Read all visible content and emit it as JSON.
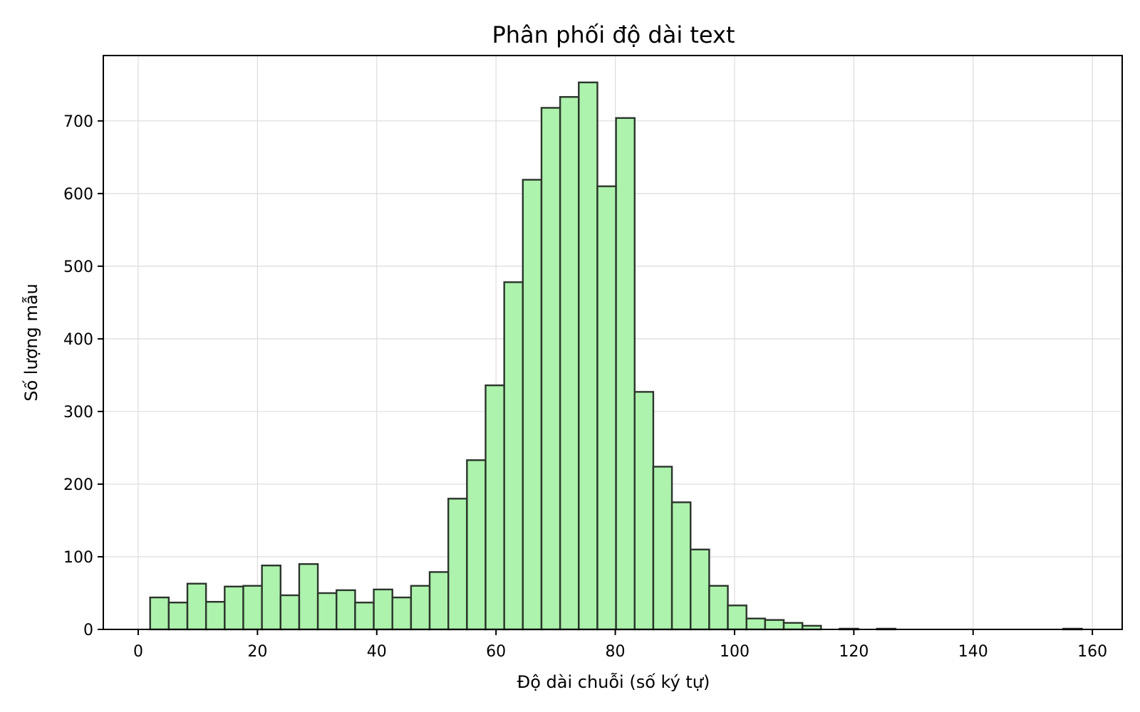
{
  "chart_data": {
    "type": "bar",
    "title": "Phân phối độ dài text",
    "xlabel": "Độ dài chuỗi (số ký tự)",
    "ylabel": "Số lượng mẫu",
    "xlim": [
      -5.85,
      165.0
    ],
    "ylim": [
      0,
      790
    ],
    "xticks": [
      0,
      20,
      40,
      60,
      80,
      100,
      120,
      140,
      160
    ],
    "yticks": [
      0,
      100,
      200,
      300,
      400,
      500,
      600,
      700
    ],
    "grid": true,
    "bin_width": 3.125,
    "bins": [
      {
        "x0": 2.0,
        "count": 44
      },
      {
        "x0": 5.125,
        "count": 37
      },
      {
        "x0": 8.25,
        "count": 63
      },
      {
        "x0": 11.375,
        "count": 38
      },
      {
        "x0": 14.5,
        "count": 59
      },
      {
        "x0": 17.625,
        "count": 60
      },
      {
        "x0": 20.75,
        "count": 88
      },
      {
        "x0": 23.875,
        "count": 47
      },
      {
        "x0": 27.0,
        "count": 90
      },
      {
        "x0": 30.125,
        "count": 50
      },
      {
        "x0": 33.25,
        "count": 54
      },
      {
        "x0": 36.375,
        "count": 37
      },
      {
        "x0": 39.5,
        "count": 55
      },
      {
        "x0": 42.625,
        "count": 44
      },
      {
        "x0": 45.75,
        "count": 60
      },
      {
        "x0": 48.875,
        "count": 79
      },
      {
        "x0": 52.0,
        "count": 180
      },
      {
        "x0": 55.125,
        "count": 233
      },
      {
        "x0": 58.25,
        "count": 336
      },
      {
        "x0": 61.375,
        "count": 478
      },
      {
        "x0": 64.5,
        "count": 619
      },
      {
        "x0": 67.625,
        "count": 718
      },
      {
        "x0": 70.75,
        "count": 733
      },
      {
        "x0": 73.875,
        "count": 753
      },
      {
        "x0": 77.0,
        "count": 610
      },
      {
        "x0": 80.125,
        "count": 704
      },
      {
        "x0": 83.25,
        "count": 327
      },
      {
        "x0": 86.375,
        "count": 224
      },
      {
        "x0": 89.5,
        "count": 175
      },
      {
        "x0": 92.625,
        "count": 110
      },
      {
        "x0": 95.75,
        "count": 60
      },
      {
        "x0": 98.875,
        "count": 33
      },
      {
        "x0": 102.0,
        "count": 15
      },
      {
        "x0": 105.125,
        "count": 13
      },
      {
        "x0": 108.25,
        "count": 9
      },
      {
        "x0": 111.375,
        "count": 5
      },
      {
        "x0": 117.625,
        "count": 1
      },
      {
        "x0": 123.875,
        "count": 1
      },
      {
        "x0": 155.125,
        "count": 1
      }
    ]
  }
}
